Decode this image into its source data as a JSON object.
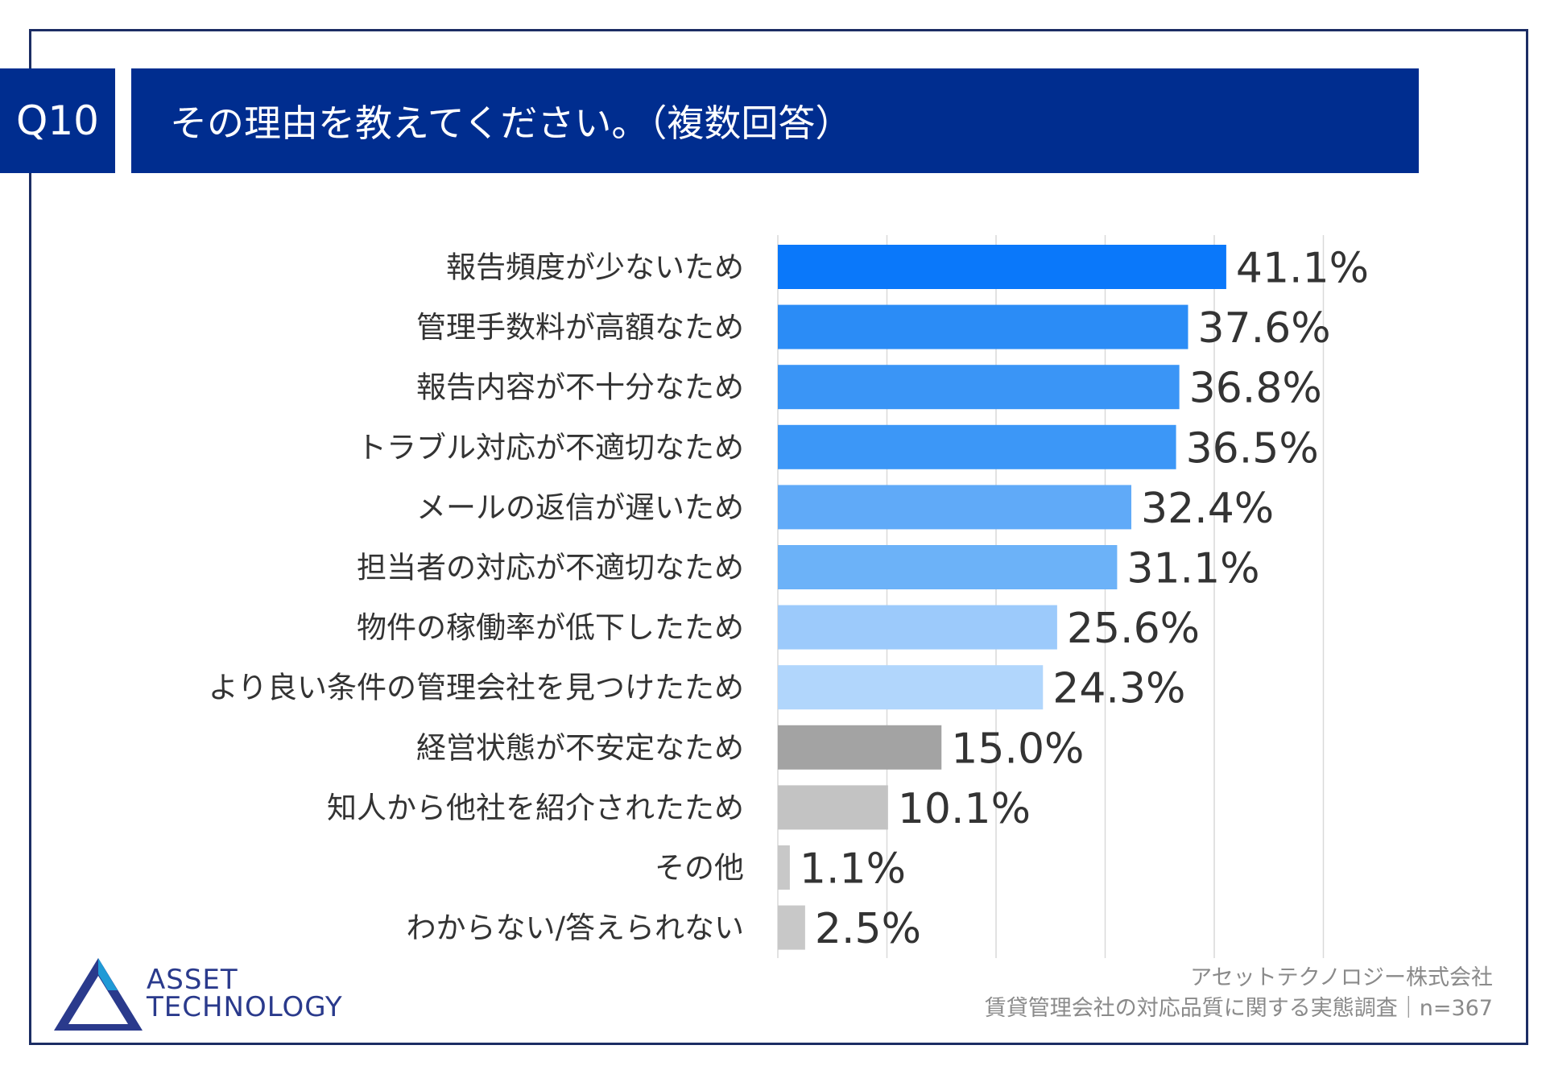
{
  "header": {
    "question_number": "Q10",
    "title": "その理由を教えてください。（複数回答）"
  },
  "chart_data": {
    "type": "bar",
    "orientation": "horizontal",
    "title": "その理由を教えてください。（複数回答）",
    "xlim": [
      0,
      50
    ],
    "grid": true,
    "categories": [
      "報告頻度が少ないため",
      "管理手数料が高額なため",
      "報告内容が不十分なため",
      "トラブル対応が不適切なため",
      "メールの返信が遅いため",
      "担当者の対応が不適切なため",
      "物件の稼働率が低下したため",
      "より良い条件の管理会社を見つけたため",
      "経営状態が不安定なため",
      "知人から他社を紹介されたため",
      "その他",
      "わからない/答えられない"
    ],
    "values": [
      41.1,
      37.6,
      36.8,
      36.5,
      32.4,
      31.1,
      25.6,
      24.3,
      15.0,
      10.1,
      1.1,
      2.5
    ],
    "value_labels": [
      "41.1%",
      "37.6%",
      "36.8%",
      "36.5%",
      "32.4%",
      "31.1%",
      "25.6%",
      "24.3%",
      "15.0%",
      "10.1%",
      "1.1%",
      "2.5%"
    ],
    "bar_colors": [
      "#0a78fa",
      "#2b8cf6",
      "#3a95f6",
      "#3c97f7",
      "#60aaf8",
      "#6cb2f8",
      "#9ccafb",
      "#b1d6fc",
      "#a3a3a3",
      "#c3c3c3",
      "#c8c8c8",
      "#c8c8c8"
    ]
  },
  "logo": {
    "line1": "ASSET",
    "line2": "TECHNOLOGY",
    "brand_color": "#2a3a8c"
  },
  "footer": {
    "company": "アセットテクノロジー株式会社",
    "survey": "賃貸管理会社の対応品質に関する実態調査｜n=367"
  }
}
